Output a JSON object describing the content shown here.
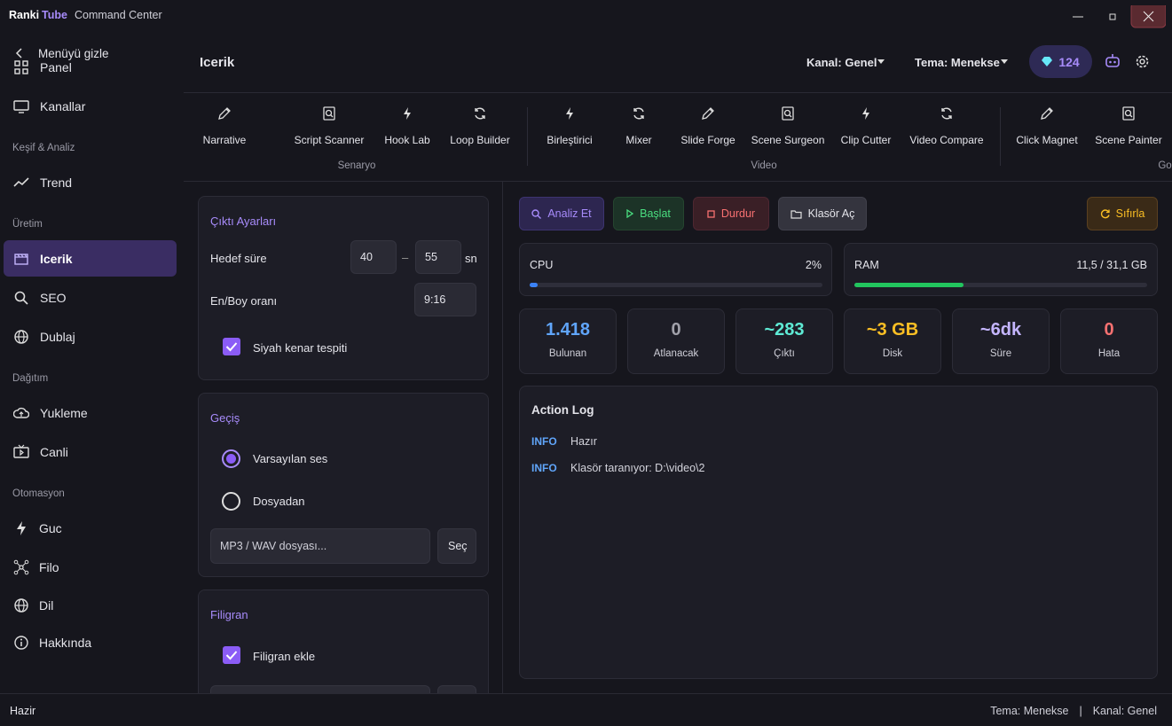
{
  "titlebar": {
    "brand": "Ranki",
    "brand_accent": "Tube",
    "subtitle": "Command Center"
  },
  "sidebar": {
    "toggle": "Menüyü gizle",
    "items": [
      {
        "kind": "item",
        "label": "Panel"
      },
      {
        "kind": "item",
        "label": "Kanallar"
      },
      {
        "kind": "section",
        "label": "Keşif & Analiz"
      },
      {
        "kind": "item",
        "label": "Trend"
      },
      {
        "kind": "section",
        "label": "Üretim"
      },
      {
        "kind": "item",
        "label": "Icerik",
        "active": true
      },
      {
        "kind": "item",
        "label": "SEO"
      },
      {
        "kind": "item",
        "label": "Dublaj"
      },
      {
        "kind": "section",
        "label": "Dağıtım"
      },
      {
        "kind": "item",
        "label": "Yukleme"
      },
      {
        "kind": "item",
        "label": "Canli"
      },
      {
        "kind": "section",
        "label": "Otomasyon"
      },
      {
        "kind": "item",
        "label": "Guc"
      },
      {
        "kind": "item",
        "label": "Filo"
      },
      {
        "kind": "item",
        "label": "Dil"
      },
      {
        "kind": "item",
        "label": "Hakkında"
      }
    ]
  },
  "header": {
    "title": "Icerik",
    "channel": "Kanal: Genel",
    "theme": "Tema: Menekse",
    "gems": "124"
  },
  "toolbar": {
    "groups": [
      {
        "label": "Senaryo",
        "tools": [
          "Narrative",
          "Script Scanner",
          "Hook Lab",
          "Loop Builder"
        ]
      },
      {
        "label": "Video",
        "tools": [
          "Birleştirici",
          "Mixer",
          "Slide Forge",
          "Scene Surgeon",
          "Clip Cutter",
          "Video Compare"
        ]
      },
      {
        "label": "Go",
        "tools": [
          "Click Magnet",
          "Scene Painter"
        ]
      }
    ]
  },
  "settings": {
    "output": {
      "title": "Çıktı Ayarları",
      "duration_label": "Hedef süre",
      "duration_min": "40",
      "dash": "–",
      "duration_max": "55",
      "unit": "sn",
      "ratio_label": "En/Boy oranı",
      "ratio": "9:16",
      "detect_label": "Siyah kenar tespiti",
      "detect_checked": true
    },
    "transition": {
      "title": "Geçiş",
      "options": [
        "Varsayılan ses",
        "Dosyadan"
      ],
      "selected": 0,
      "file_placeholder": "MP3 / WAV dosyası...",
      "choose": "Seç"
    },
    "watermark": {
      "title": "Filigran",
      "add_label": "Filigran ekle",
      "add_checked": true
    }
  },
  "actions": {
    "analyze": "Analiz Et",
    "start": "Başlat",
    "stop": "Durdur",
    "open_folder": "Klasör Aç",
    "reset": "Sıfırla"
  },
  "meters": [
    {
      "label": "CPU",
      "value": "2%"
    },
    {
      "label": "RAM",
      "value": "11,5 / 31,1 GB"
    }
  ],
  "stats": [
    {
      "value": "1.418",
      "label": "Bulunan"
    },
    {
      "value": "0",
      "label": "Atlanacak"
    },
    {
      "value": "~283",
      "label": "Çıktı"
    },
    {
      "value": "~3 GB",
      "label": "Disk"
    },
    {
      "value": "~6dk",
      "label": "Süre"
    },
    {
      "value": "0",
      "label": "Hata"
    }
  ],
  "log": {
    "title": "Action Log",
    "entries": [
      {
        "level": "INFO",
        "message": "Hazır"
      },
      {
        "level": "INFO",
        "message": "Klasör taranıyor: D:\\video\\2"
      }
    ]
  },
  "statusbar": {
    "status": "Hazir",
    "theme": "Tema: Menekse",
    "separator": "|",
    "channel": "Kanal: Genel"
  }
}
